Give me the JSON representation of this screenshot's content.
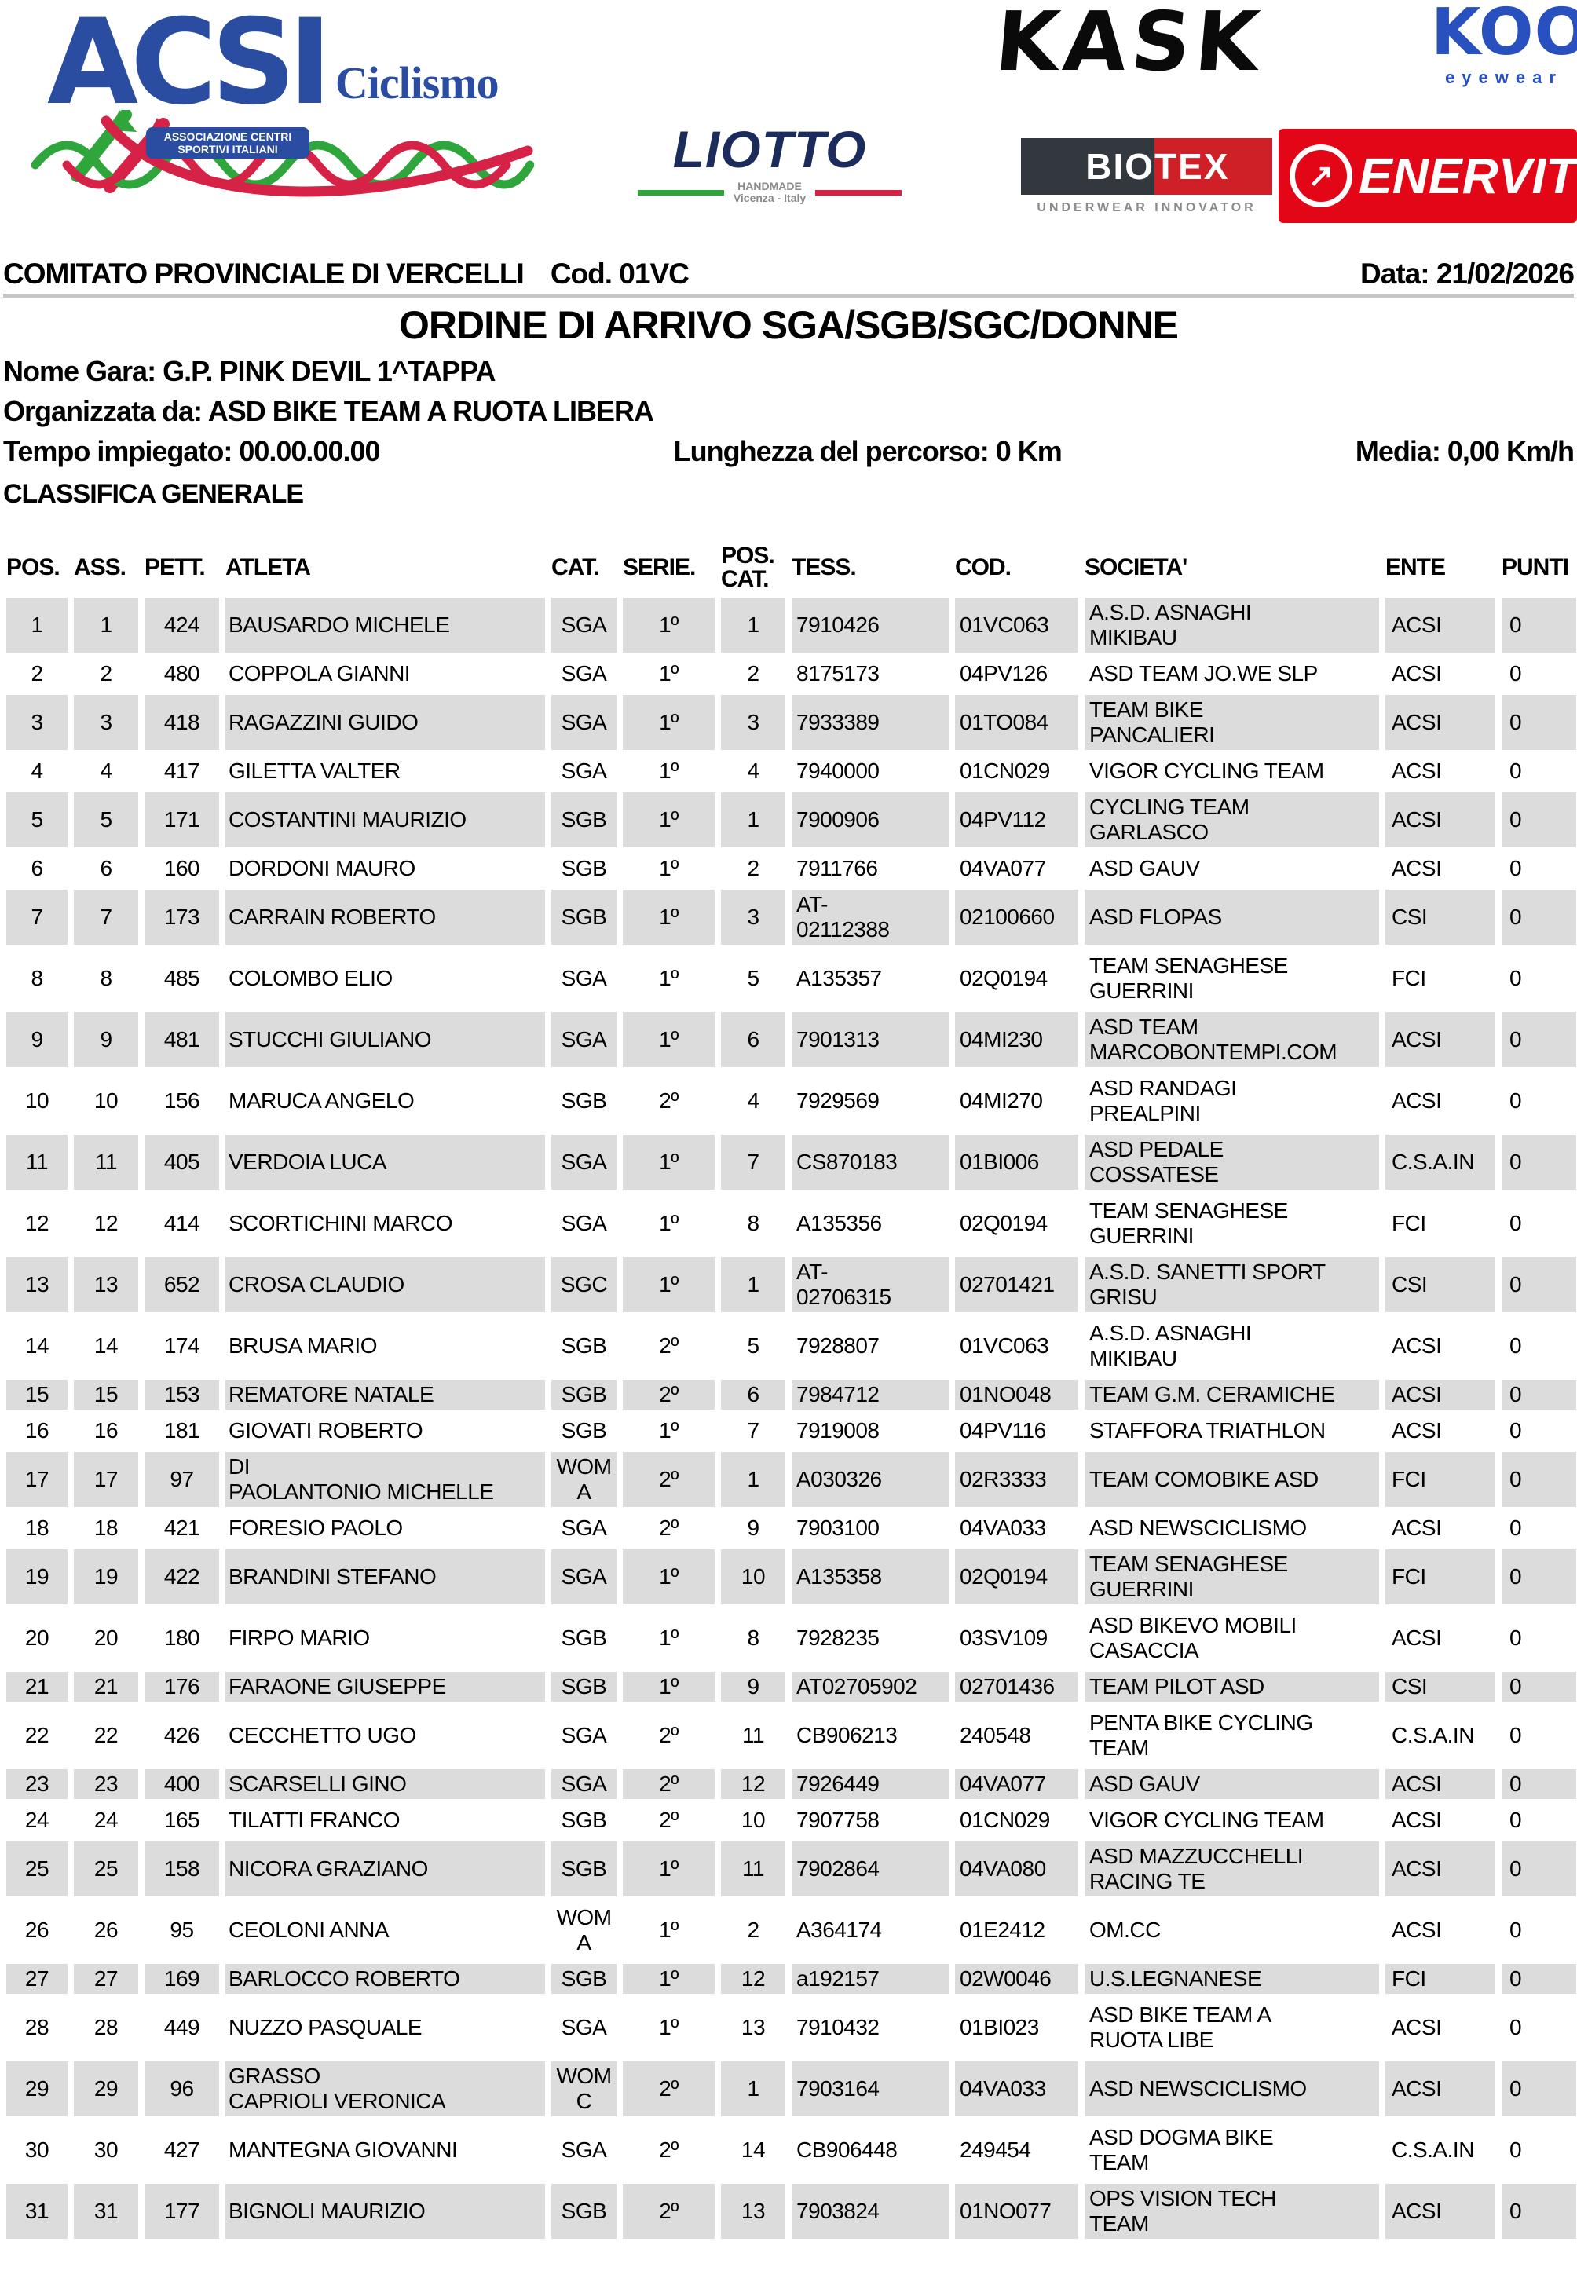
{
  "colors": {
    "row_gray": "#dcdcdc",
    "sep_gray": "#c6c6c6",
    "acsi_blue": "#2b4da1",
    "wave_green": "#2fa63c",
    "wave_red": "#d62246",
    "liotto_navy": "#1a2b5c",
    "koo_blue": "#2850bf",
    "biotex_dark": "#33383f",
    "biotex_red": "#cf2027",
    "enervit_red": "#e30617",
    "muted_gray": "#8a8a8a"
  },
  "logos": {
    "acsi": {
      "name": "ACSI",
      "caption": "Ciclismo",
      "box_line1": "ASSOCIAZIONE CENTRI",
      "box_line2": "SPORTIVI ITALIANI"
    },
    "liotto": {
      "name": "LIOTTO",
      "sub1": "HANDMADE",
      "sub2": "Vicenza - Italy"
    },
    "kask": {
      "name": "KASK"
    },
    "koo": {
      "name": "KOO",
      "sub": "eyewear"
    },
    "biotex": {
      "left": "BIO",
      "right": "TEX",
      "sub": "UNDERWEAR INNOVATOR"
    },
    "enervit": {
      "name": "ENERVIT",
      "mark": "↗"
    }
  },
  "header": {
    "committee": "COMITATO PROVINCIALE DI VERCELLI",
    "code": "Cod. 01VC",
    "date": "Data: 21/02/2026",
    "title": "ORDINE DI ARRIVO SGA/SGB/SGC/DONNE",
    "race": "Nome Gara: G.P. PINK DEVIL 1^TAPPA",
    "organizer": "Organizzata da: ASD BIKE TEAM A RUOTA LIBERA",
    "time": "Tempo impiegato: 00.00.00.00",
    "length": "Lunghezza del percorso: 0 Km",
    "average": "Media: 0,00 Km/h",
    "classification": "CLASSIFICA GENERALE"
  },
  "table": {
    "columns": [
      "POS.",
      "ASS.",
      "PETT.",
      "ATLETA",
      "CAT.",
      "SERIE.",
      "POS.\nCAT.",
      "TESS.",
      "COD.",
      "SOCIETA'",
      "ENTE",
      "PUNTI"
    ],
    "rows": [
      [
        "1",
        "1",
        "424",
        "BAUSARDO MICHELE",
        "SGA",
        "1º",
        "1",
        "7910426",
        "01VC063",
        "A.S.D. ASNAGHI\nMIKIBAU",
        "ACSI",
        "0"
      ],
      [
        "2",
        "2",
        "480",
        "COPPOLA GIANNI",
        "SGA",
        "1º",
        "2",
        "8175173",
        "04PV126",
        "ASD TEAM JO.WE SLP",
        "ACSI",
        "0"
      ],
      [
        "3",
        "3",
        "418",
        "RAGAZZINI GUIDO",
        "SGA",
        "1º",
        "3",
        "7933389",
        "01TO084",
        "TEAM BIKE\nPANCALIERI",
        "ACSI",
        "0"
      ],
      [
        "4",
        "4",
        "417",
        "GILETTA VALTER",
        "SGA",
        "1º",
        "4",
        "7940000",
        "01CN029",
        "VIGOR CYCLING TEAM",
        "ACSI",
        "0"
      ],
      [
        "5",
        "5",
        "171",
        "COSTANTINI MAURIZIO",
        "SGB",
        "1º",
        "1",
        "7900906",
        "04PV112",
        "CYCLING TEAM\nGARLASCO",
        "ACSI",
        "0"
      ],
      [
        "6",
        "6",
        "160",
        "DORDONI MAURO",
        "SGB",
        "1º",
        "2",
        "7911766",
        "04VA077",
        "ASD GAUV",
        "ACSI",
        "0"
      ],
      [
        "7",
        "7",
        "173",
        "CARRAIN ROBERTO",
        "SGB",
        "1º",
        "3",
        "AT-\n02112388",
        "02100660",
        "ASD FLOPAS",
        "CSI",
        "0"
      ],
      [
        "8",
        "8",
        "485",
        "COLOMBO ELIO",
        "SGA",
        "1º",
        "5",
        "A135357",
        "02Q0194",
        "TEAM SENAGHESE\nGUERRINI",
        "FCI",
        "0"
      ],
      [
        "9",
        "9",
        "481",
        "STUCCHI GIULIANO",
        "SGA",
        "1º",
        "6",
        "7901313",
        "04MI230",
        "ASD TEAM\nMARCOBONTEMPI.COM",
        "ACSI",
        "0"
      ],
      [
        "10",
        "10",
        "156",
        "MARUCA ANGELO",
        "SGB",
        "2º",
        "4",
        "7929569",
        "04MI270",
        "ASD RANDAGI\nPREALPINI",
        "ACSI",
        "0"
      ],
      [
        "11",
        "11",
        "405",
        "VERDOIA LUCA",
        "SGA",
        "1º",
        "7",
        "CS870183",
        "01BI006",
        "ASD PEDALE\nCOSSATESE",
        "C.S.A.IN",
        "0"
      ],
      [
        "12",
        "12",
        "414",
        "SCORTICHINI MARCO",
        "SGA",
        "1º",
        "8",
        "A135356",
        "02Q0194",
        "TEAM SENAGHESE\nGUERRINI",
        "FCI",
        "0"
      ],
      [
        "13",
        "13",
        "652",
        "CROSA CLAUDIO",
        "SGC",
        "1º",
        "1",
        "AT-\n02706315",
        "02701421",
        "A.S.D. SANETTI SPORT\nGRISU",
        "CSI",
        "0"
      ],
      [
        "14",
        "14",
        "174",
        "BRUSA MARIO",
        "SGB",
        "2º",
        "5",
        "7928807",
        "01VC063",
        "A.S.D. ASNAGHI\nMIKIBAU",
        "ACSI",
        "0"
      ],
      [
        "15",
        "15",
        "153",
        "REMATORE NATALE",
        "SGB",
        "2º",
        "6",
        "7984712",
        "01NO048",
        "TEAM G.M. CERAMICHE",
        "ACSI",
        "0"
      ],
      [
        "16",
        "16",
        "181",
        "GIOVATI ROBERTO",
        "SGB",
        "1º",
        "7",
        "7919008",
        "04PV116",
        "STAFFORA TRIATHLON",
        "ACSI",
        "0"
      ],
      [
        "17",
        "17",
        "97",
        "DI\nPAOLANTONIO MICHELLE",
        "WOM\nA",
        "2º",
        "1",
        "A030326",
        "02R3333",
        "TEAM COMOBIKE ASD",
        "FCI",
        "0"
      ],
      [
        "18",
        "18",
        "421",
        "FORESIO PAOLO",
        "SGA",
        "2º",
        "9",
        "7903100",
        "04VA033",
        "ASD NEWSCICLISMO",
        "ACSI",
        "0"
      ],
      [
        "19",
        "19",
        "422",
        "BRANDINI STEFANO",
        "SGA",
        "1º",
        "10",
        "A135358",
        "02Q0194",
        "TEAM SENAGHESE\nGUERRINI",
        "FCI",
        "0"
      ],
      [
        "20",
        "20",
        "180",
        "FIRPO MARIO",
        "SGB",
        "1º",
        "8",
        "7928235",
        "03SV109",
        "ASD BIKEVO MOBILI\nCASACCIA",
        "ACSI",
        "0"
      ],
      [
        "21",
        "21",
        "176",
        "FARAONE GIUSEPPE",
        "SGB",
        "1º",
        "9",
        "AT02705902",
        "02701436",
        "TEAM PILOT ASD",
        "CSI",
        "0"
      ],
      [
        "22",
        "22",
        "426",
        "CECCHETTO UGO",
        "SGA",
        "2º",
        "11",
        "CB906213",
        "240548",
        "PENTA BIKE CYCLING\nTEAM",
        "C.S.A.IN",
        "0"
      ],
      [
        "23",
        "23",
        "400",
        "SCARSELLI GINO",
        "SGA",
        "2º",
        "12",
        "7926449",
        "04VA077",
        "ASD GAUV",
        "ACSI",
        "0"
      ],
      [
        "24",
        "24",
        "165",
        "TILATTI FRANCO",
        "SGB",
        "2º",
        "10",
        "7907758",
        "01CN029",
        "VIGOR CYCLING TEAM",
        "ACSI",
        "0"
      ],
      [
        "25",
        "25",
        "158",
        "NICORA GRAZIANO",
        "SGB",
        "1º",
        "11",
        "7902864",
        "04VA080",
        "ASD MAZZUCCHELLI\nRACING TE",
        "ACSI",
        "0"
      ],
      [
        "26",
        "26",
        "95",
        "CEOLONI ANNA",
        "WOM\nA",
        "1º",
        "2",
        "A364174",
        "01E2412",
        "OM.CC",
        "ACSI",
        "0"
      ],
      [
        "27",
        "27",
        "169",
        "BARLOCCO ROBERTO",
        "SGB",
        "1º",
        "12",
        "a192157",
        "02W0046",
        "U.S.LEGNANESE",
        "FCI",
        "0"
      ],
      [
        "28",
        "28",
        "449",
        "NUZZO PASQUALE",
        "SGA",
        "1º",
        "13",
        "7910432",
        "01BI023",
        "ASD BIKE TEAM A\nRUOTA LIBE",
        "ACSI",
        "0"
      ],
      [
        "29",
        "29",
        "96",
        "GRASSO\nCAPRIOLI VERONICA",
        "WOM\nC",
        "2º",
        "1",
        "7903164",
        "04VA033",
        "ASD NEWSCICLISMO",
        "ACSI",
        "0"
      ],
      [
        "30",
        "30",
        "427",
        "MANTEGNA GIOVANNI",
        "SGA",
        "2º",
        "14",
        "CB906448",
        "249454",
        "ASD DOGMA BIKE\nTEAM",
        "C.S.A.IN",
        "0"
      ],
      [
        "31",
        "31",
        "177",
        "BIGNOLI MAURIZIO",
        "SGB",
        "2º",
        "13",
        "7903824",
        "01NO077",
        "OPS VISION TECH\nTEAM",
        "ACSI",
        "0"
      ]
    ]
  }
}
